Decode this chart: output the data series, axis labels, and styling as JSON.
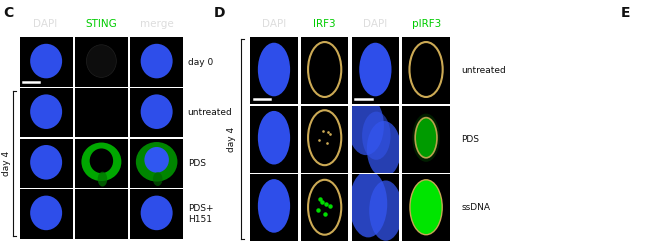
{
  "bg_color": "#000000",
  "fig_bg": "#ffffff",
  "panel_C_label": "C",
  "panel_D_label": "D",
  "panel_E_label": "E",
  "col_headers_C": [
    "DAPI",
    "STING",
    "merge"
  ],
  "col_headers_D": [
    "DAPI",
    "IRF3",
    "DAPI",
    "pIRF3"
  ],
  "row_labels_C": [
    "day 0",
    "untreated",
    "PDS",
    "PDS+\nH151"
  ],
  "row_labels_D": [
    "untreated",
    "PDS",
    "ssDNA"
  ],
  "day4_label": "day 4",
  "blue_color": "#3355ff",
  "gold_color": "#ccaa55",
  "header_color_white": "#dddddd",
  "header_color_green": "#00cc00",
  "text_color": "#111111",
  "header_fontsize": 7.5,
  "panel_label_fontsize": 10,
  "row_label_fontsize": 6.5
}
